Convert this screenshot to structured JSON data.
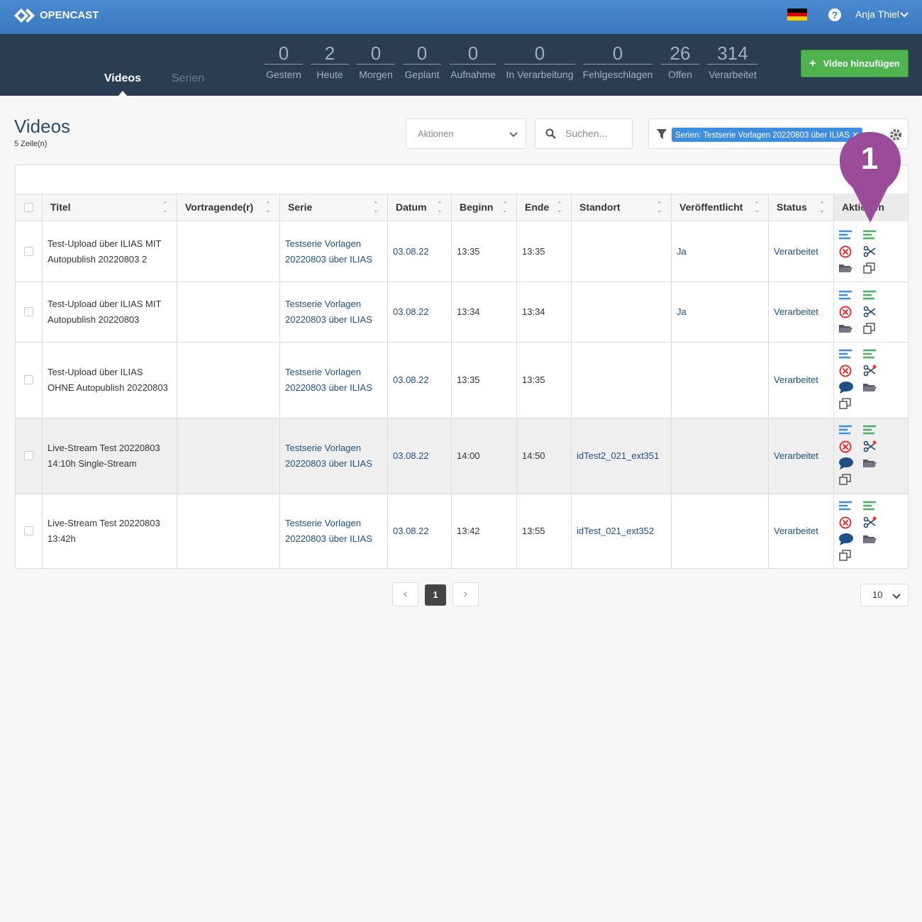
{
  "header": {
    "brand": "OPENCAST",
    "user": "Anja Thiel"
  },
  "nav": {
    "tabs": [
      "Videos",
      "Serien"
    ]
  },
  "stats": [
    {
      "value": 0,
      "label": "Gestern"
    },
    {
      "value": 2,
      "label": "Heute"
    },
    {
      "value": 0,
      "label": "Morgen"
    },
    {
      "value": 0,
      "label": "Geplant"
    },
    {
      "value": 0,
      "label": "Aufnahme"
    },
    {
      "value": 0,
      "label": "In Verarbeitung"
    },
    {
      "value": 0,
      "label": "Fehlgeschlagen"
    },
    {
      "value": 26,
      "label": "Offen"
    },
    {
      "value": 314,
      "label": "Verarbeitet"
    }
  ],
  "add_button": "Video hinzufügen",
  "page": {
    "title": "Videos",
    "row_count": "5 Zeile(n)"
  },
  "toolbar": {
    "actions": "Aktionen",
    "search": "Suchen...",
    "filter": "Serien: Testserie Vorlagen 20220803 über ILIAS"
  },
  "table": {
    "columns": [
      "Titel",
      "Vortragende(r)",
      "Serie",
      "Datum",
      "Beginn",
      "Ende",
      "Standort",
      "Veröffentlicht",
      "Status",
      "Aktionen"
    ],
    "rows": [
      {
        "title": "Test-Upload über ILIAS MIT Autopublish 20220803 2",
        "series": "Testserie Vorlagen 20220803 über ILIAS",
        "date": "03.08.22",
        "start": "13:35",
        "end": "13:35",
        "published": "Ja",
        "status": "Verarbeitet"
      },
      {
        "title": "Test-Upload über ILIAS MIT Autopublish 20220803",
        "series": "Testserie Vorlagen 20220803 über ILIAS",
        "date": "03.08.22",
        "start": "13:34",
        "end": "13:34",
        "published": "Ja",
        "status": "Verarbeitet"
      },
      {
        "title": "Test-Upload über ILIAS OHNE Autopublish 20220803",
        "series": "Testserie Vorlagen 20220803 über ILIAS",
        "date": "03.08.22",
        "start": "13:35",
        "end": "13:35",
        "status": "Verarbeitet"
      },
      {
        "title": "Live-Stream Test 20220803 14:10h Single-Stream",
        "series": "Testserie Vorlagen 20220803 über ILIAS",
        "date": "03.08.22",
        "start": "14:00",
        "end": "14:50",
        "location": "idTest2_021_ext351",
        "status": "Verarbeitet"
      },
      {
        "title": "Live-Stream Test 20220803 13:42h",
        "series": "Testserie Vorlagen 20220803 über ILIAS",
        "date": "03.08.22",
        "start": "13:42",
        "end": "13:55",
        "location": "idTest_021_ext352",
        "status": "Verarbeitet"
      }
    ]
  },
  "pagination": {
    "page": 1,
    "page_size": 10
  },
  "annotation": {
    "marker": "1"
  }
}
